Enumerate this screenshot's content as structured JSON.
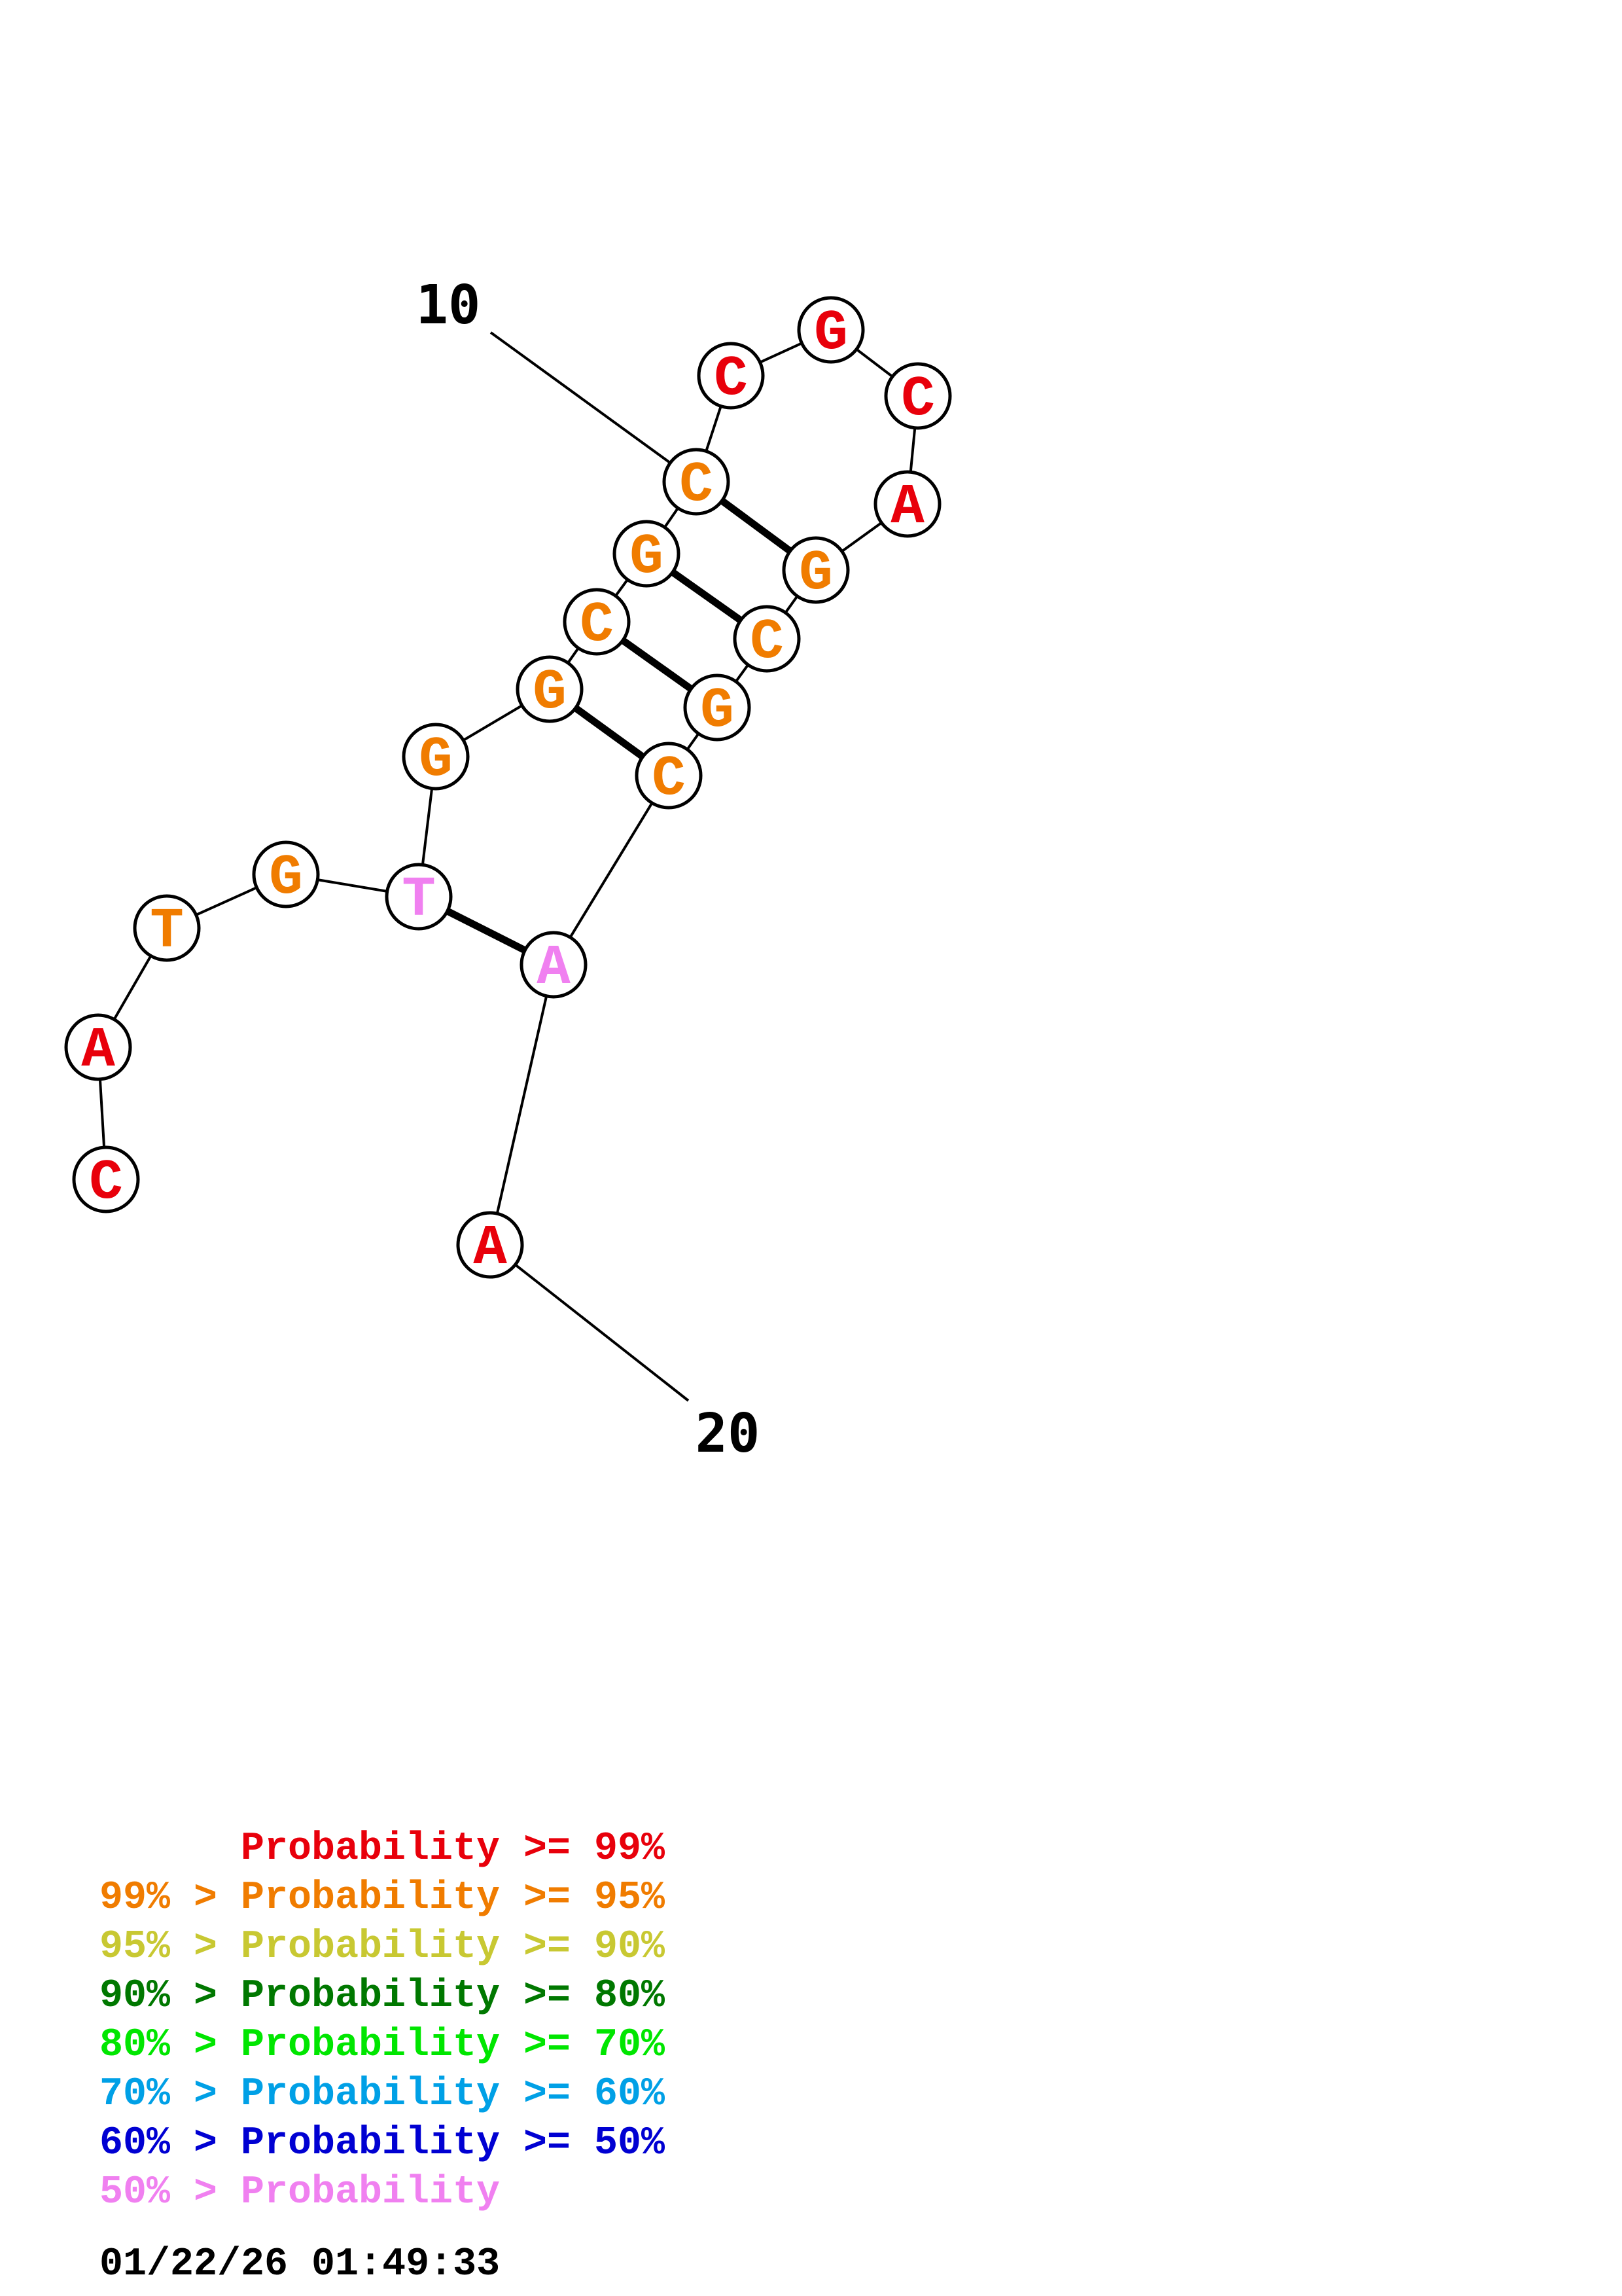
{
  "structure": {
    "nucleotides": [
      {
        "id": 1,
        "base": "C",
        "color": "#e8000b"
      },
      {
        "id": 2,
        "base": "A",
        "color": "#e8000b"
      },
      {
        "id": 3,
        "base": "T",
        "color": "#f07c00"
      },
      {
        "id": 4,
        "base": "G",
        "color": "#f07c00"
      },
      {
        "id": 5,
        "base": "T",
        "color": "#f080f0"
      },
      {
        "id": 6,
        "base": "G",
        "color": "#f07c00"
      },
      {
        "id": 7,
        "base": "G",
        "color": "#f07c00"
      },
      {
        "id": 8,
        "base": "C",
        "color": "#f07c00"
      },
      {
        "id": 9,
        "base": "G",
        "color": "#f07c00"
      },
      {
        "id": 10,
        "base": "C",
        "color": "#f07c00"
      },
      {
        "id": 11,
        "base": "C",
        "color": "#e8000b"
      },
      {
        "id": 12,
        "base": "G",
        "color": "#e8000b"
      },
      {
        "id": 13,
        "base": "C",
        "color": "#e8000b"
      },
      {
        "id": 14,
        "base": "A",
        "color": "#e8000b"
      },
      {
        "id": 15,
        "base": "G",
        "color": "#f07c00"
      },
      {
        "id": 16,
        "base": "C",
        "color": "#f07c00"
      },
      {
        "id": 17,
        "base": "G",
        "color": "#f07c00"
      },
      {
        "id": 18,
        "base": "C",
        "color": "#f07c00"
      },
      {
        "id": 19,
        "base": "A",
        "color": "#f080f0"
      },
      {
        "id": 20,
        "base": "A",
        "color": "#e8000b"
      }
    ],
    "pairs": [
      [
        5,
        19
      ],
      [
        7,
        18
      ],
      [
        8,
        17
      ],
      [
        9,
        16
      ],
      [
        10,
        15
      ]
    ],
    "tick_labels": [
      {
        "nucleotide": 10,
        "text": "10"
      },
      {
        "nucleotide": 20,
        "text": "20"
      }
    ]
  },
  "legend": [
    {
      "prefix": "",
      "label": "Probability",
      "suffix": ">= 99%",
      "color": "#e8000b"
    },
    {
      "prefix": "99% >",
      "label": "Probability",
      "suffix": ">= 95%",
      "color": "#f07c00"
    },
    {
      "prefix": "95% >",
      "label": "Probability",
      "suffix": ">= 90%",
      "color": "#c8c832"
    },
    {
      "prefix": "90% >",
      "label": "Probability",
      "suffix": ">= 80%",
      "color": "#007800"
    },
    {
      "prefix": "80% >",
      "label": "Probability",
      "suffix": ">= 70%",
      "color": "#00e600"
    },
    {
      "prefix": "70% >",
      "label": "Probability",
      "suffix": ">= 60%",
      "color": "#00a0e6"
    },
    {
      "prefix": "60% >",
      "label": "Probability",
      "suffix": ">= 50%",
      "color": "#0000d2"
    },
    {
      "prefix": "50% >",
      "label": "Probability",
      "suffix": "",
      "color": "#f080f0"
    }
  ],
  "timestamp": "01/22/26 01:49:33"
}
